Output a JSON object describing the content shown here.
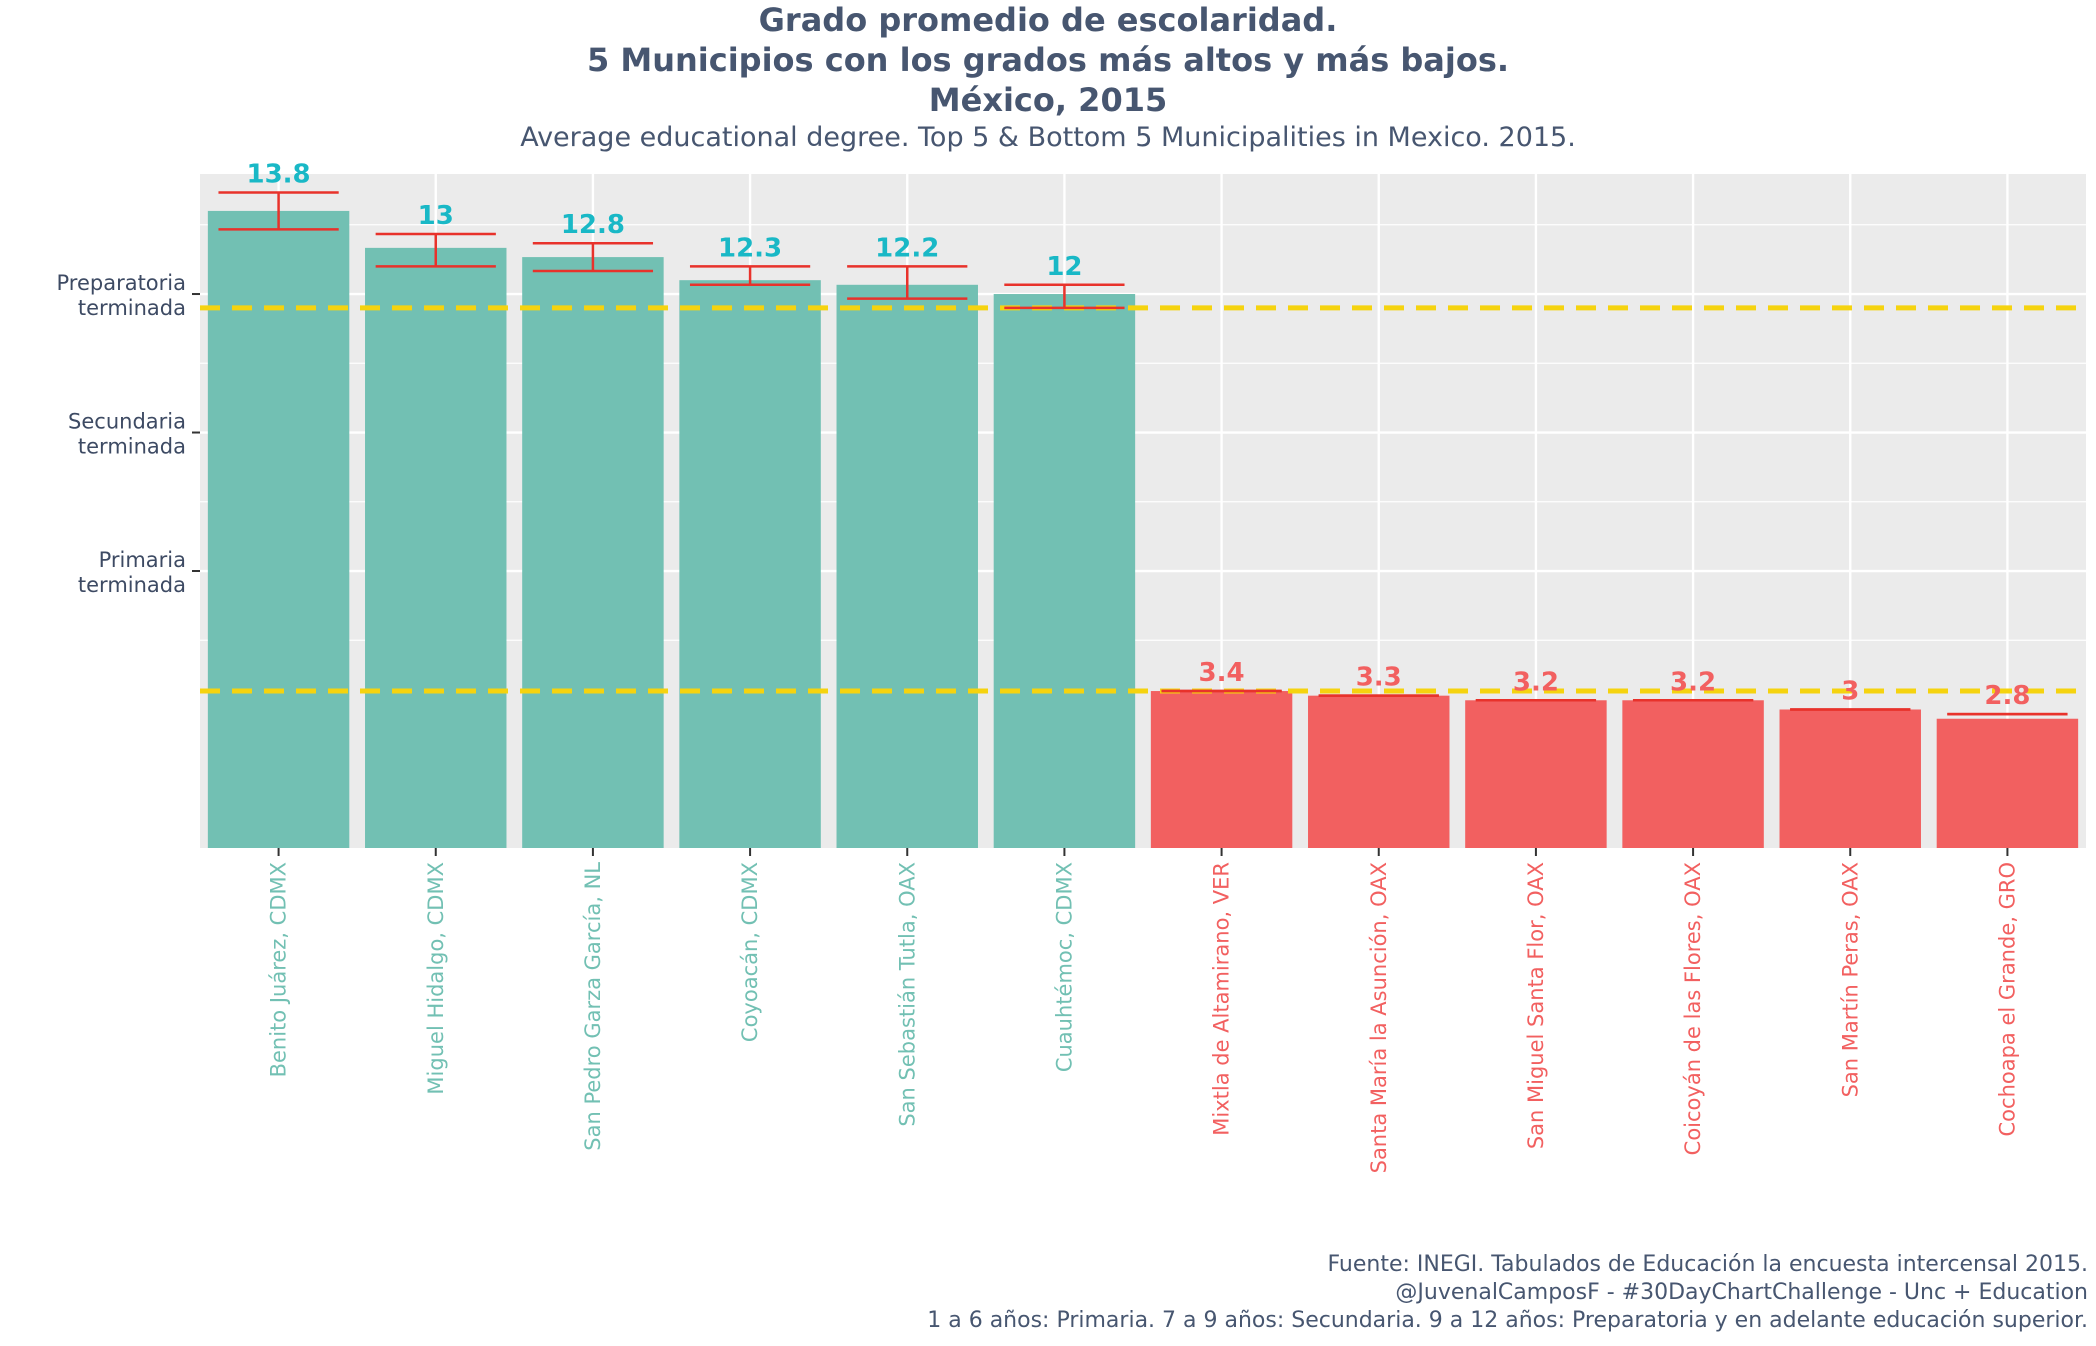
{
  "title": {
    "line1": "Grado promedio de escolaridad.",
    "line2": "5 Municipios con los grados más altos y más bajos.",
    "line3": "México, 2015"
  },
  "subtitle": "Average educational degree. Top 5 & Bottom 5 Municipalities in Mexico. 2015.",
  "caption": {
    "line1": "Fuente: INEGI. Tabulados de Educación la encuesta intercensal 2015.",
    "line2": "@JuvenalCamposF - #30DayChartChallenge - Unc + Education",
    "line3": "1 a 6 años: Primaria. 7 a 9 años: Secundaria. 9 a 12 años: Preparatoria y en adelante educación superior."
  },
  "colors": {
    "top": "#72c0b3",
    "bottom": "#f26060",
    "top_label": "#19b8c6",
    "bottom_label": "#f26060",
    "error_bar": "#e8322b",
    "reference_line": "#f5d30f",
    "panel": "#ebebeb",
    "grid": "#ffffff"
  },
  "chart_data": {
    "type": "bar",
    "ylim": [
      0,
      14.6
    ],
    "grid": true,
    "y_ticks": [
      {
        "value": 6,
        "line1": "Primaria",
        "line2": "terminada"
      },
      {
        "value": 9,
        "line1": "Secundaria",
        "line2": "terminada"
      },
      {
        "value": 12,
        "line1": "Preparatoria",
        "line2": "terminada"
      }
    ],
    "reference_lines": [
      11.7,
      3.4
    ],
    "bars": [
      {
        "category": "Benito Juárez, CDMX",
        "value": 13.8,
        "label": "13.8",
        "group": "top",
        "err_low": 13.4,
        "err_high": 14.2
      },
      {
        "category": "Miguel Hidalgo, CDMX",
        "value": 13,
        "label": "13",
        "group": "top",
        "err_low": 12.6,
        "err_high": 13.3
      },
      {
        "category": "San Pedro Garza García, NL",
        "value": 12.8,
        "label": "12.8",
        "group": "top",
        "err_low": 12.5,
        "err_high": 13.1
      },
      {
        "category": "Coyoacán, CDMX",
        "value": 12.3,
        "label": "12.3",
        "group": "top",
        "err_low": 12.2,
        "err_high": 12.6
      },
      {
        "category": "San Sebastián Tutla, OAX",
        "value": 12.2,
        "label": "12.2",
        "group": "top",
        "err_low": 11.9,
        "err_high": 12.6
      },
      {
        "category": "Cuauhtémoc, CDMX",
        "value": 12,
        "label": "12",
        "group": "top",
        "err_low": 11.7,
        "err_high": 12.2
      },
      {
        "category": "Mixtla de Altamirano, VER",
        "value": 3.4,
        "label": "3.4",
        "group": "bottom",
        "err_low": 3.4,
        "err_high": 3.4
      },
      {
        "category": "Santa María la Asunción, OAX",
        "value": 3.3,
        "label": "3.3",
        "group": "bottom",
        "err_low": 3.3,
        "err_high": 3.3
      },
      {
        "category": "San Miguel Santa Flor, OAX",
        "value": 3.2,
        "label": "3.2",
        "group": "bottom",
        "err_low": 3.2,
        "err_high": 3.2
      },
      {
        "category": "Coicoyán de las Flores, OAX",
        "value": 3.2,
        "label": "3.2",
        "group": "bottom",
        "err_low": 3.2,
        "err_high": 3.2
      },
      {
        "category": "San Martín Peras, OAX",
        "value": 3,
        "label": "3",
        "group": "bottom",
        "err_low": 3.0,
        "err_high": 3.0
      },
      {
        "category": "Cochoapa el Grande, GRO",
        "value": 2.8,
        "label": "2.8",
        "group": "bottom",
        "err_low": 2.9,
        "err_high": 2.9
      }
    ]
  }
}
